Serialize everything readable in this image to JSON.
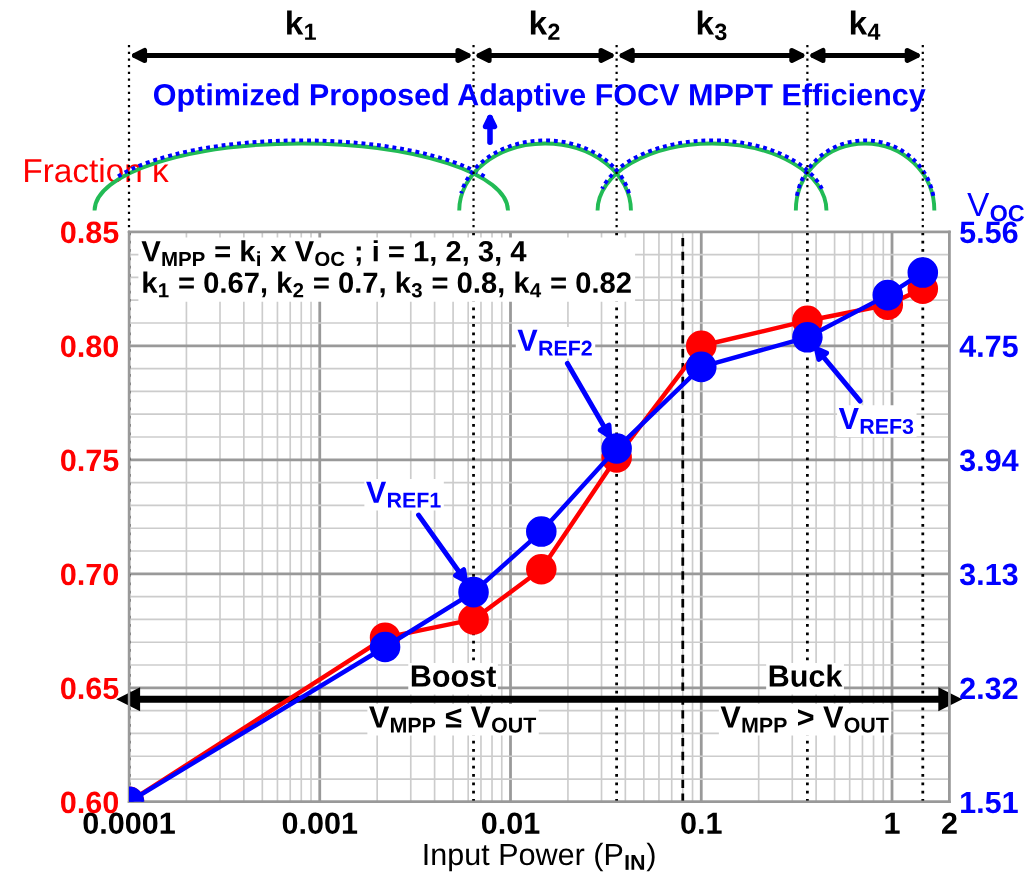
{
  "chart_data": {
    "type": "line",
    "xlabel": "Input Power (P$_{IN}$)",
    "ylabel": "Fraction k",
    "y2label": "V$_{OC}$ (V)",
    "x": [
      0.0001,
      0.0022,
      0.0064,
      0.0145,
      0.036,
      0.1,
      0.36,
      0.95,
      1.45
    ],
    "series": [
      {
        "color": "#ff0000",
        "values": [
          0.6,
          0.672,
          0.68,
          0.702,
          0.751,
          0.8,
          0.811,
          0.818,
          0.825
        ]
      },
      {
        "color": "#0000ff",
        "axis": "y2",
        "values": [
          1.51,
          2.61,
          3.0,
          3.43,
          4.02,
          4.6,
          4.81,
          5.11,
          5.27
        ]
      }
    ],
    "log": "x",
    "xlim": [
      0.0001,
      2
    ],
    "xticks": [
      0.0001,
      0.001,
      0.01,
      0.1,
      1,
      2
    ],
    "ylim": [
      0.6,
      0.85
    ],
    "yticks": [
      {
        "value": 0.6,
        "label": "0.60"
      },
      0.65,
      {
        "value": 0.7,
        "label": "0.70"
      },
      0.75,
      {
        "value": 0.8,
        "label": "0.80"
      },
      0.85
    ],
    "y2lim": [
      1.51,
      5.56
    ],
    "y2ticks": [
      1.51,
      2.32,
      3.13,
      3.94,
      4.75,
      5.56
    ],
    "grid": true,
    "marker": "circle",
    "line_style": "solid",
    "legend": false,
    "ref_lines": [
      {
        "axis": "x",
        "value": 0.0001,
        "line_style": "dotted",
        "color": "#000000"
      },
      {
        "axis": "x",
        "value": 0.0064,
        "line_style": "dotted",
        "color": "#000000"
      },
      {
        "axis": "x",
        "value": 0.036,
        "line_style": "dotted",
        "color": "#000000"
      },
      {
        "axis": "x",
        "value": 0.36,
        "line_style": "dotted",
        "color": "#000000"
      },
      {
        "axis": "x",
        "value": 1.45,
        "line_style": "dotted",
        "color": "#000000"
      },
      {
        "axis": "x",
        "value": 0.08,
        "line_style": "dashed",
        "color": "#000000"
      },
      {
        "axis": "y",
        "value": 0.645,
        "line_style": "solid",
        "color": "#000000"
      }
    ],
    "annotations": [
      "k$_{1}$",
      "k$_{2}$",
      "k$_{3}$",
      "k$_{4}$",
      "Optimized Proposed Adaptive FOCV MPPT Efficiency",
      "V$_{MPP}$ = k$_{i}$ x V$_{OC}$ ; i = 1, 2, 3, 4\nk$_{1}$ = 0.67, k$_{2}$ = 0.7, k$_{3}$ = 0.8, k$_{4}$ = 0.82",
      {
        "text": "V$_{REF1}$",
        "x": 0.0064,
        "y": 0.692
      },
      {
        "text": "V$_{REF2}$",
        "x": 0.036,
        "y": 0.755
      },
      {
        "text": "V$_{REF3}$",
        "x": 0.36,
        "y": 0.8035
      },
      "Boost",
      "V$_{MPP}$ ≤ V$_{OUT}$",
      "Buck",
      "V$_{MPP}$ > V$_{OUT}$"
    ]
  }
}
